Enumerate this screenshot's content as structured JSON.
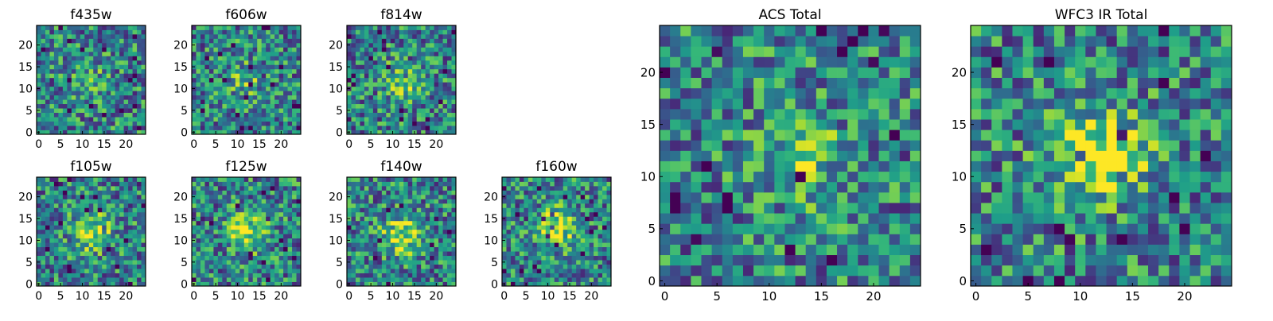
{
  "chart_data": [
    {
      "type": "heatmap",
      "title": "f435w",
      "xlabel": "",
      "ylabel": "",
      "grid_size": 25,
      "xlim": [
        -0.5,
        24.5
      ],
      "ylim": [
        -0.5,
        24.5
      ],
      "xticks": [
        0,
        5,
        10,
        15,
        20
      ],
      "yticks": [
        0,
        5,
        10,
        15,
        20
      ],
      "colormap": "viridis",
      "pattern": "uniform noise, no clear source",
      "peak_center": [
        12,
        12
      ]
    },
    {
      "type": "heatmap",
      "title": "f606w",
      "xlabel": "",
      "ylabel": "",
      "grid_size": 25,
      "xlim": [
        -0.5,
        24.5
      ],
      "ylim": [
        -0.5,
        24.5
      ],
      "xticks": [
        0,
        5,
        10,
        15,
        20
      ],
      "yticks": [
        0,
        5,
        10,
        15,
        20
      ],
      "colormap": "viridis",
      "pattern": "uniform noise, faint source",
      "peak_center": [
        12,
        12
      ]
    },
    {
      "type": "heatmap",
      "title": "f814w",
      "xlabel": "",
      "ylabel": "",
      "grid_size": 25,
      "xlim": [
        -0.5,
        24.5
      ],
      "ylim": [
        -0.5,
        24.5
      ],
      "xticks": [
        0,
        5,
        10,
        15,
        20
      ],
      "yticks": [
        0,
        5,
        10,
        15,
        20
      ],
      "colormap": "viridis",
      "pattern": "noise with central brightening",
      "peak_center": [
        13,
        12
      ]
    },
    {
      "type": "heatmap",
      "title": "f105w",
      "xlabel": "",
      "ylabel": "",
      "grid_size": 25,
      "xlim": [
        -0.5,
        24.5
      ],
      "ylim": [
        -0.5,
        24.5
      ],
      "xticks": [
        0,
        5,
        10,
        15,
        20
      ],
      "yticks": [
        0,
        5,
        10,
        15,
        20
      ],
      "colormap": "viridis",
      "pattern": "central source",
      "peak_center": [
        12,
        12
      ]
    },
    {
      "type": "heatmap",
      "title": "f125w",
      "xlabel": "",
      "ylabel": "",
      "grid_size": 25,
      "xlim": [
        -0.5,
        24.5
      ],
      "ylim": [
        -0.5,
        24.5
      ],
      "xticks": [
        0,
        5,
        10,
        15,
        20
      ],
      "yticks": [
        0,
        5,
        10,
        15,
        20
      ],
      "colormap": "viridis",
      "pattern": "central source",
      "peak_center": [
        12,
        12
      ]
    },
    {
      "type": "heatmap",
      "title": "f140w",
      "xlabel": "",
      "ylabel": "",
      "grid_size": 25,
      "xlim": [
        -0.5,
        24.5
      ],
      "ylim": [
        -0.5,
        24.5
      ],
      "xticks": [
        0,
        5,
        10,
        15,
        20
      ],
      "yticks": [
        0,
        5,
        10,
        15,
        20
      ],
      "colormap": "viridis",
      "pattern": "central source",
      "peak_center": [
        12,
        11
      ]
    },
    {
      "type": "heatmap",
      "title": "f160w",
      "xlabel": "",
      "ylabel": "",
      "grid_size": 25,
      "xlim": [
        -0.5,
        24.5
      ],
      "ylim": [
        -0.5,
        24.5
      ],
      "xticks": [
        0,
        5,
        10,
        15,
        20
      ],
      "yticks": [
        0,
        5,
        10,
        15,
        20
      ],
      "colormap": "viridis",
      "pattern": "central source with dark pixels lower right",
      "peak_center": [
        12,
        13
      ]
    },
    {
      "type": "heatmap",
      "title": "ACS Total",
      "xlabel": "",
      "ylabel": "",
      "grid_size": 25,
      "xlim": [
        -0.5,
        24.5
      ],
      "ylim": [
        -0.5,
        24.5
      ],
      "xticks": [
        0,
        5,
        10,
        15,
        20
      ],
      "yticks": [
        0,
        5,
        10,
        15,
        20
      ],
      "colormap": "viridis",
      "pattern": "noise with weak central brightening",
      "peak_center": [
        13,
        12
      ]
    },
    {
      "type": "heatmap",
      "title": "WFC3 IR Total",
      "xlabel": "",
      "ylabel": "",
      "grid_size": 25,
      "xlim": [
        -0.5,
        24.5
      ],
      "ylim": [
        -0.5,
        24.5
      ],
      "xticks": [
        0,
        5,
        10,
        15,
        20
      ],
      "yticks": [
        0,
        5,
        10,
        15,
        20
      ],
      "colormap": "viridis",
      "pattern": "strong central source, dark pixels near bottom",
      "peak_center": [
        12,
        12
      ]
    }
  ]
}
